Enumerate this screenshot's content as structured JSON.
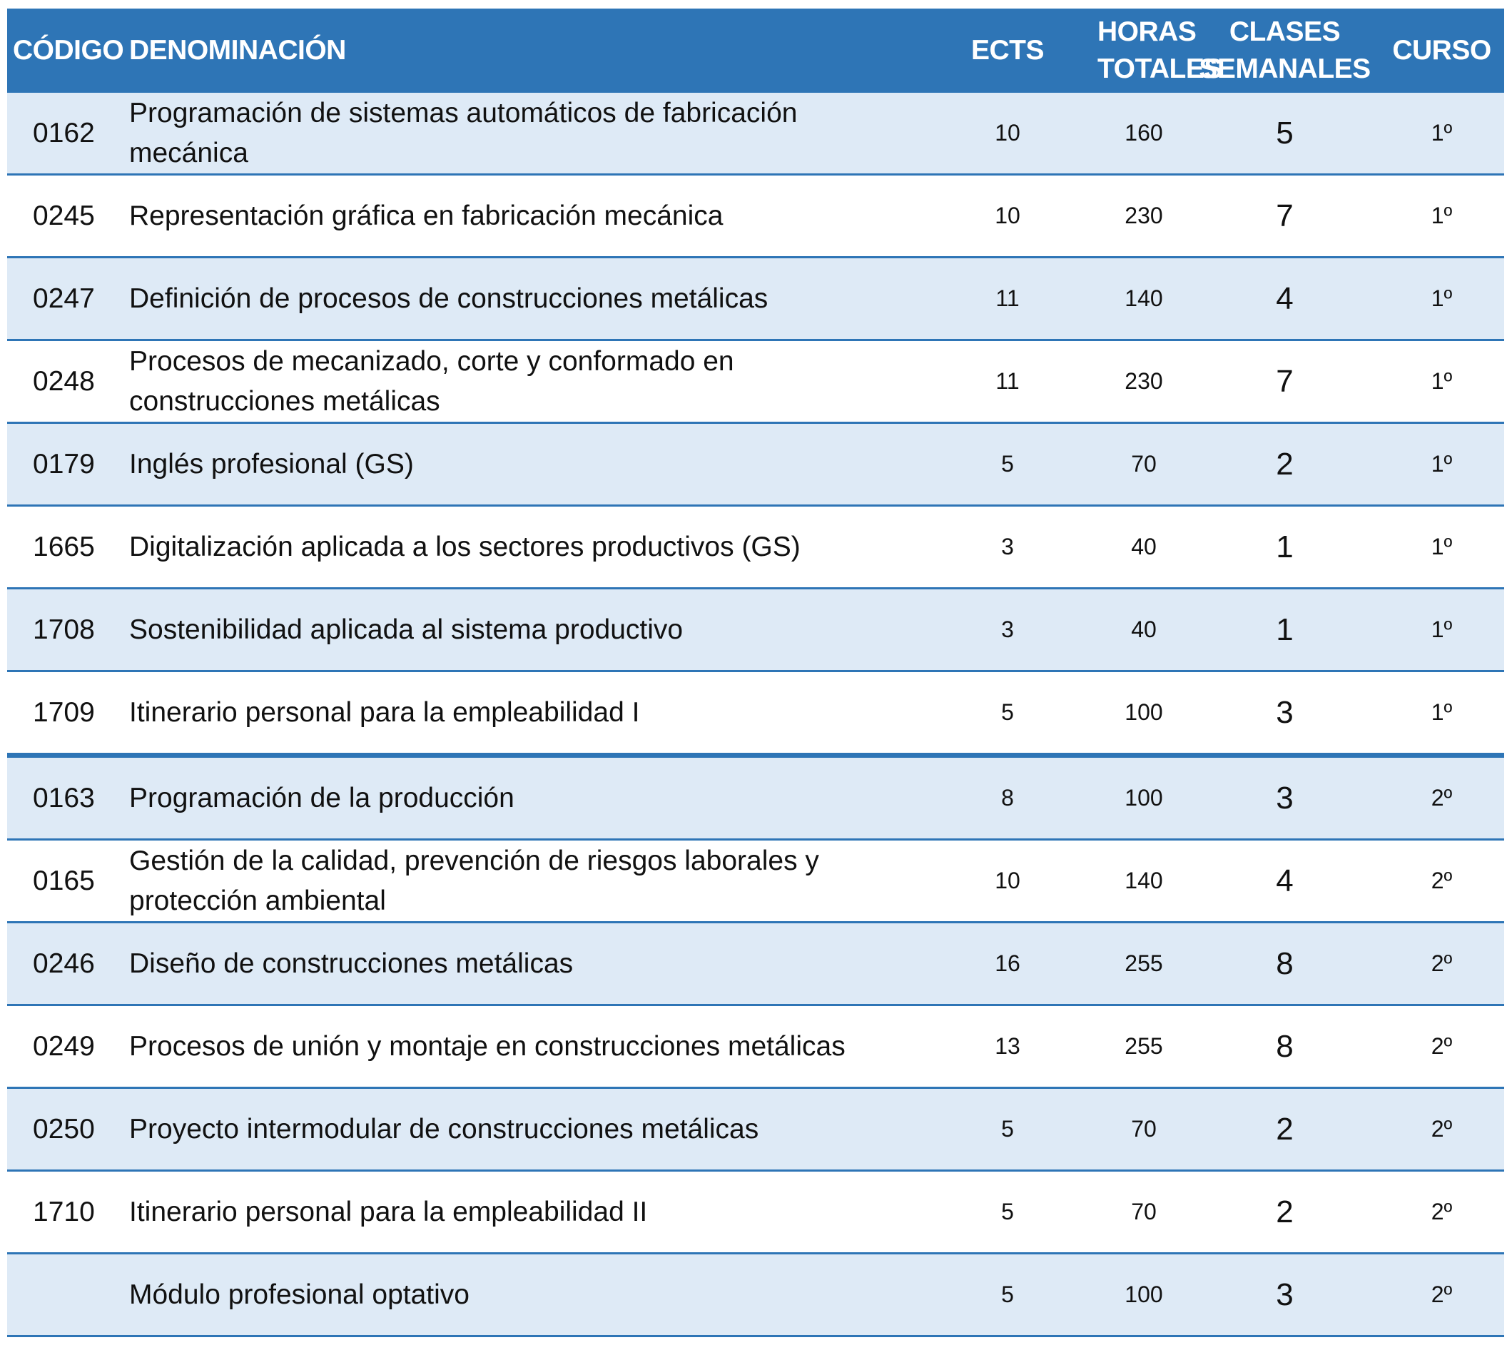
{
  "headers": {
    "code": "CÓDIGO",
    "name": "DENOMINACIÓN",
    "ects": "ECTS",
    "hours": "HORAS TOTALES",
    "classes": "CLASES SEMANALES",
    "course": "CURSO"
  },
  "rows": [
    {
      "code": "0162",
      "name": "Programación de sistemas automáticos de fabricación mecánica",
      "ects": "10",
      "hours": "160",
      "classes": "5",
      "course": "1º"
    },
    {
      "code": "0245",
      "name": "Representación gráfica en fabricación mecánica",
      "ects": "10",
      "hours": "230",
      "classes": "7",
      "course": "1º"
    },
    {
      "code": "0247",
      "name": "Definición de procesos de construcciones metálicas",
      "ects": "11",
      "hours": "140",
      "classes": "4",
      "course": "1º"
    },
    {
      "code": "0248",
      "name": "Procesos de mecanizado, corte y conformado en construcciones metálicas",
      "ects": "11",
      "hours": "230",
      "classes": "7",
      "course": "1º"
    },
    {
      "code": "0179",
      "name": "Inglés profesional (GS)",
      "ects": "5",
      "hours": "70",
      "classes": "2",
      "course": "1º"
    },
    {
      "code": "1665",
      "name": "Digitalización aplicada a los sectores productivos (GS)",
      "ects": "3",
      "hours": "40",
      "classes": "1",
      "course": "1º"
    },
    {
      "code": "1708",
      "name": "Sostenibilidad aplicada al sistema productivo",
      "ects": "3",
      "hours": "40",
      "classes": "1",
      "course": "1º"
    },
    {
      "code": "1709",
      "name": "Itinerario personal para la empleabilidad I",
      "ects": "5",
      "hours": "100",
      "classes": "3",
      "course": "1º"
    },
    {
      "code": "0163",
      "name": "Programación de la producción",
      "ects": "8",
      "hours": "100",
      "classes": "3",
      "course": "2º"
    },
    {
      "code": "0165",
      "name": "Gestión de la calidad, prevención de riesgos laborales y protección ambiental",
      "ects": "10",
      "hours": "140",
      "classes": "4",
      "course": "2º"
    },
    {
      "code": "0246",
      "name": "Diseño de construcciones metálicas",
      "ects": "16",
      "hours": "255",
      "classes": "8",
      "course": "2º"
    },
    {
      "code": "0249",
      "name": "Procesos de unión y montaje en construcciones metálicas",
      "ects": "13",
      "hours": "255",
      "classes": "8",
      "course": "2º"
    },
    {
      "code": "0250",
      "name": "Proyecto intermodular de construcciones metálicas",
      "ects": "5",
      "hours": "70",
      "classes": "2",
      "course": "2º"
    },
    {
      "code": "1710",
      "name": "Itinerario personal para la empleabilidad II",
      "ects": "5",
      "hours": "70",
      "classes": "2",
      "course": "2º"
    },
    {
      "code": "",
      "name": "Módulo profesional optativo",
      "ects": "5",
      "hours": "100",
      "classes": "3",
      "course": "2º"
    }
  ]
}
